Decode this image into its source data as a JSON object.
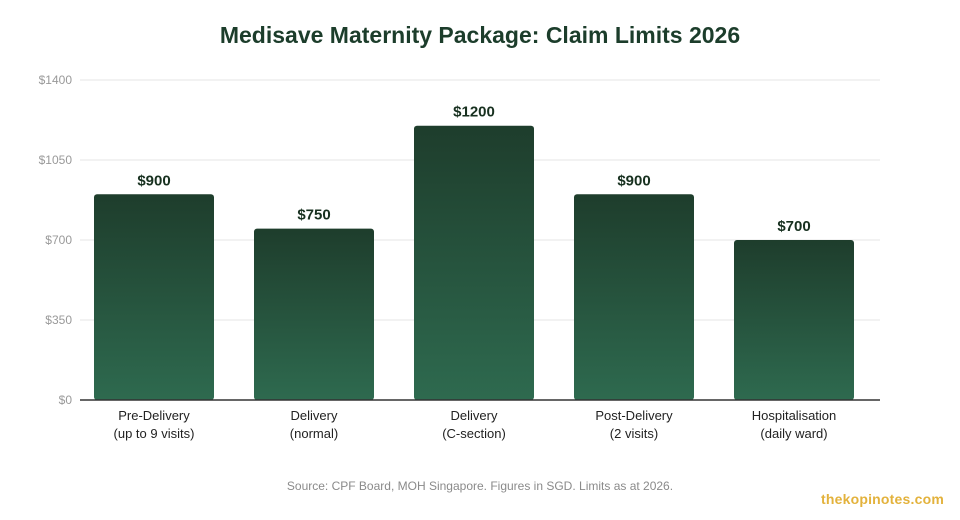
{
  "chart_data": {
    "type": "bar",
    "title": "Medisave Maternity Package: Claim Limits 2026",
    "categories": [
      [
        "Pre-Delivery",
        "(up to 9 visits)"
      ],
      [
        "Delivery",
        "(normal)"
      ],
      [
        "Delivery",
        "(C-section)"
      ],
      [
        "Post-Delivery",
        "(2 visits)"
      ],
      [
        "Hospitalisation",
        "(daily ward)"
      ]
    ],
    "values": [
      900,
      750,
      1200,
      900,
      700
    ],
    "value_labels": [
      "$900",
      "$750",
      "$1200",
      "$900",
      "$700"
    ],
    "y_ticks": [
      0,
      350,
      700,
      1050,
      1400
    ],
    "y_tick_labels": [
      "$0",
      "$350",
      "$700",
      "$1050",
      "$1400"
    ],
    "ylim": [
      0,
      1400
    ],
    "grid": true,
    "xlabel": "",
    "ylabel": ""
  },
  "source_note": "Source: CPF Board, MOH Singapore. Figures in SGD. Limits as at 2026.",
  "brand": "thekopinotes.com",
  "colors": {
    "title": "#1c3d2b",
    "bar_top": "#1e3d2c",
    "bar_bottom": "#2e6a4f",
    "grid": "#e6e6e6",
    "axis": "#333333",
    "brand": "#e3b23c"
  }
}
